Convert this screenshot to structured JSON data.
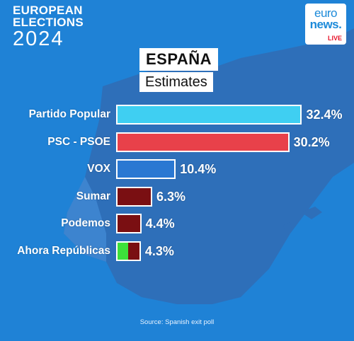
{
  "header": {
    "brand_line1": "EUROPEAN",
    "brand_line2": "ELECTIONS",
    "brand_line3": "2024"
  },
  "logo": {
    "line1": "euro",
    "line2": "news.",
    "live": "LIVE"
  },
  "title": "ESPAÑA",
  "subtitle": "Estimates",
  "source": "Source: Spanish exit poll",
  "chart_data": {
    "type": "bar",
    "orientation": "horizontal",
    "title": "ESPAÑA",
    "subtitle": "Estimates",
    "categories": [
      "Partido Popular",
      "PSC - PSOE",
      "VOX",
      "Sumar",
      "Podemos",
      "Ahora Repúblicas"
    ],
    "values": [
      32.4,
      30.2,
      10.4,
      6.3,
      4.4,
      4.3
    ],
    "value_labels": [
      "32.4%",
      "30.2%",
      "10.4%",
      "6.3%",
      "4.4%",
      "4.3%"
    ],
    "unit": "%",
    "colors": [
      [
        "#3fcff2"
      ],
      [
        "#e8414a"
      ],
      [
        "#2a78d2"
      ],
      [
        "#7a0f12"
      ],
      [
        "#7a0f12"
      ],
      [
        "#3de03a",
        "#7a0f12"
      ]
    ],
    "xlabel": "",
    "ylabel": "",
    "grid": false,
    "legend": "none"
  },
  "colors": {
    "background": "#1f82d6",
    "land": "#2e6fb9",
    "text": "#ffffff",
    "title_box": "#ffffff"
  }
}
